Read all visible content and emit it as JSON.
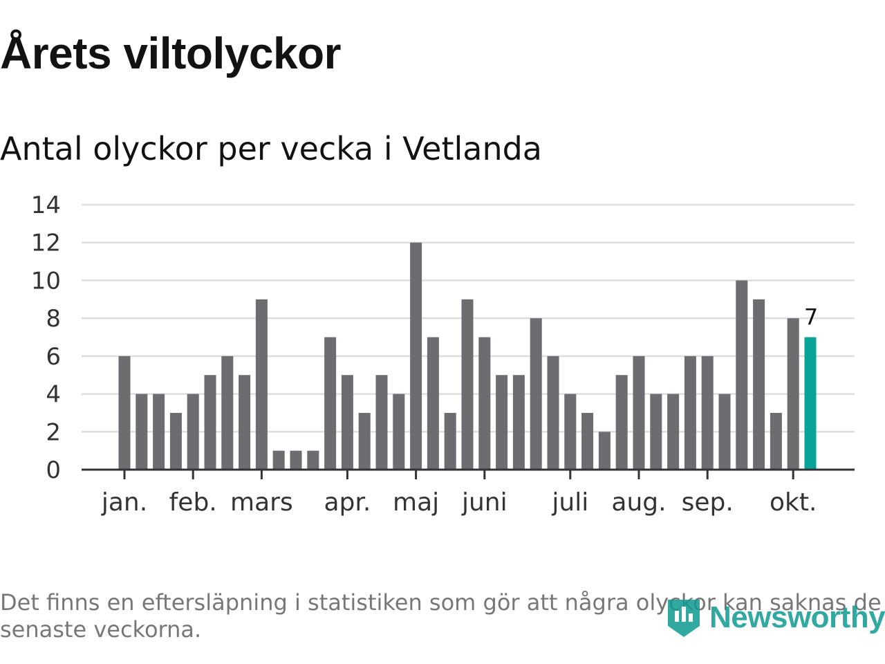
{
  "header": {
    "title": "Årets viltolyckor",
    "subtitle": "Antal olyckor per vecka i Vetlanda"
  },
  "chart_data": {
    "type": "bar",
    "title": "Årets viltolyckor",
    "subtitle": "Antal olyckor per vecka i Vetlanda",
    "xlabel": "",
    "ylabel": "",
    "ylim": [
      0,
      14
    ],
    "yticks": [
      0,
      2,
      4,
      6,
      8,
      10,
      12,
      14
    ],
    "grid": true,
    "values": [
      6,
      4,
      4,
      3,
      4,
      5,
      6,
      5,
      9,
      1,
      1,
      1,
      7,
      5,
      3,
      5,
      4,
      12,
      7,
      3,
      9,
      7,
      5,
      5,
      8,
      6,
      4,
      3,
      2,
      5,
      6,
      4,
      4,
      6,
      6,
      4,
      10,
      9,
      3,
      8,
      7
    ],
    "month_ticks": [
      {
        "label": "jan.",
        "week_index": 0
      },
      {
        "label": "feb.",
        "week_index": 4
      },
      {
        "label": "mars",
        "week_index": 8
      },
      {
        "label": "apr.",
        "week_index": 13
      },
      {
        "label": "maj",
        "week_index": 17
      },
      {
        "label": "juni",
        "week_index": 21
      },
      {
        "label": "juli",
        "week_index": 26
      },
      {
        "label": "aug.",
        "week_index": 30
      },
      {
        "label": "sep.",
        "week_index": 34
      },
      {
        "label": "okt.",
        "week_index": 39
      }
    ],
    "highlight": {
      "week_index": 40,
      "label": "7"
    },
    "colors": {
      "bar": "#6d6c71",
      "highlight": "#0aa398",
      "grid": "#dddddd",
      "axis": "#333333",
      "text": "#333333"
    }
  },
  "footnote": "Det finns en eftersläpning i statistiken som gör att några olyckor kan saknas de senaste veckorna.",
  "brand": {
    "name": "Newsworthy",
    "icon": "newsworthy-logo-icon",
    "color": "#0f9b90"
  }
}
